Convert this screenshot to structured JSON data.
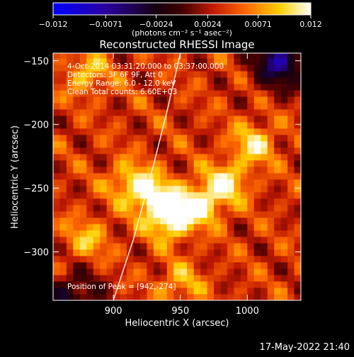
{
  "chart_data": {
    "type": "heatmap",
    "title": "Reconstructed RHESSI Image",
    "xlabel": "Heliocentric X (arcsec)",
    "ylabel": "Heliocentric Y (arcsec)",
    "xlim": [
      855,
      1040
    ],
    "ylim": [
      -338,
      -144
    ],
    "x_ticks": [
      900,
      950,
      1000
    ],
    "y_ticks": [
      -300,
      -250,
      -200,
      -150
    ],
    "colorbar": {
      "range": [
        -0.012,
        0.012
      ],
      "tick_values": [
        -0.012,
        -0.0071,
        -0.0024,
        0.0024,
        0.0071,
        0.012
      ],
      "tick_labels": [
        "−0.012",
        "−0.0071",
        "−0.0024",
        "0.0024",
        "0.0071",
        "0.012"
      ],
      "unit_label": "(photons cm⁻² s⁻¹ asec⁻²)",
      "colormap": "blue-black-red-yellow-white"
    },
    "annotations": [
      "4‐Oct‐2014 03:31:20.000 to 03:37:00.000",
      "Detectors: 3F 6F 9F, Att 0",
      "Energy Range: 6.0 ‐ 12.0 keV",
      "Clean     Total counts: 6.60E+03"
    ],
    "peak_label": "Position of Peak = [942,‐274]",
    "peak": {
      "x": 942,
      "y": -274
    },
    "limb_curve": [
      [
        900,
        -338
      ],
      [
        915,
        -290
      ],
      [
        928,
        -240
      ],
      [
        940,
        -190
      ],
      [
        950,
        -144
      ]
    ],
    "hotspots": [
      {
        "x": 942,
        "y": -274,
        "intensity": 1.0
      },
      {
        "x": 965,
        "y": -262,
        "intensity": 0.9
      },
      {
        "x": 930,
        "y": -256,
        "intensity": 0.82
      },
      {
        "x": 985,
        "y": -245,
        "intensity": 0.72
      },
      {
        "x": 1005,
        "y": -215,
        "intensity": 0.68
      },
      {
        "x": 912,
        "y": -245,
        "intensity": 0.62
      },
      {
        "x": 880,
        "y": -160,
        "intensity": 0.55
      },
      {
        "x": 880,
        "y": -290,
        "intensity": 0.52
      },
      {
        "x": 950,
        "y": -325,
        "intensity": 0.5
      }
    ],
    "cold_regions": [
      {
        "x": 1025,
        "y": -150,
        "intensity": -0.55
      },
      {
        "x": 870,
        "y": -335,
        "intensity": -0.35
      }
    ]
  },
  "footer": {
    "timestamp": "17‐May‐2022 21:40"
  }
}
